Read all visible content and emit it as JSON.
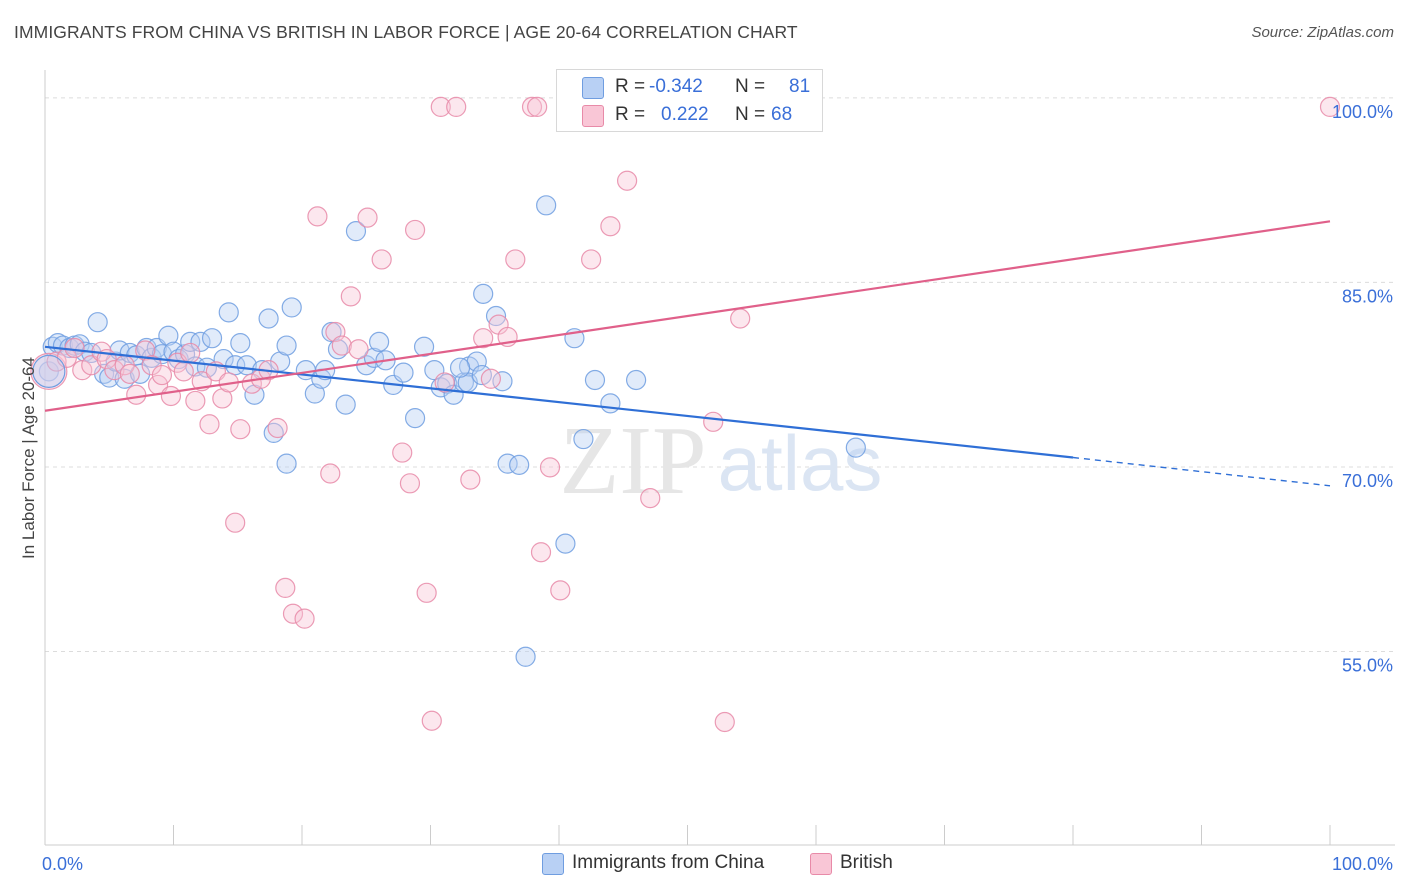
{
  "title": "IMMIGRANTS FROM CHINA VS BRITISH IN LABOR FORCE | AGE 20-64 CORRELATION CHART",
  "source": "Source: ZipAtlas.com",
  "watermark": {
    "zip": "ZIP",
    "atlas": "atlas"
  },
  "legend": {
    "rows": [
      {
        "r_label": "R =",
        "r_value": "-0.342",
        "n_label": "N =",
        "n_value": "81",
        "fill": "#b8d0f4",
        "stroke": "#6f9de0"
      },
      {
        "r_label": "R =",
        "r_value": "0.222",
        "n_label": "N =",
        "n_value": "68",
        "fill": "#f9c6d6",
        "stroke": "#e88aa8"
      }
    ]
  },
  "bottom_legend": [
    {
      "label": "Immigrants from China",
      "fill": "#b8d0f4",
      "stroke": "#6f9de0"
    },
    {
      "label": "British",
      "fill": "#f9c6d6",
      "stroke": "#e88aa8"
    }
  ],
  "chart_data": {
    "type": "scatter",
    "title": "IMMIGRANTS FROM CHINA VS BRITISH IN LABOR FORCE | AGE 20-64 CORRELATION CHART",
    "xlabel": "",
    "ylabel": "In Labor Force | Age 20-64",
    "xlim": [
      0,
      100
    ],
    "ylim": [
      40,
      103
    ],
    "x_tick_labels": [
      {
        "value": 0,
        "label": "0.0%"
      },
      {
        "value": 100,
        "label": "100.0%"
      }
    ],
    "y_tick_labels": [
      {
        "value": 100,
        "label": "100.0%"
      },
      {
        "value": 85,
        "label": "85.0%"
      },
      {
        "value": 70,
        "label": "70.0%"
      },
      {
        "value": 55,
        "label": "55.0%"
      }
    ],
    "grid": true,
    "legend_position": "top-center",
    "series": [
      {
        "name": "Immigrants from China",
        "color": "#6f9de0",
        "fill": "#b8d0f4",
        "line_color": "#2f6fd6",
        "trend": {
          "x_start": 0,
          "y_start": 80.5,
          "x_end": 80,
          "y_end": 71.5,
          "dashed_to_x": 100,
          "dashed_to_y": 69.2
        },
        "points": [
          [
            0.3,
            78.5
          ],
          [
            0.6,
            80.5
          ],
          [
            1.0,
            80.8
          ],
          [
            1.4,
            80.6
          ],
          [
            1.9,
            80.4
          ],
          [
            2.3,
            80.6
          ],
          [
            2.7,
            80.7
          ],
          [
            3.1,
            80.1
          ],
          [
            3.6,
            80.0
          ],
          [
            4.1,
            82.5
          ],
          [
            4.6,
            78.3
          ],
          [
            5.0,
            78.0
          ],
          [
            5.5,
            79.3
          ],
          [
            5.8,
            80.2
          ],
          [
            6.2,
            77.9
          ],
          [
            6.6,
            80.0
          ],
          [
            7.1,
            79.8
          ],
          [
            7.4,
            78.3
          ],
          [
            7.9,
            80.4
          ],
          [
            8.3,
            79.6
          ],
          [
            8.7,
            80.4
          ],
          [
            9.1,
            79.9
          ],
          [
            9.6,
            81.4
          ],
          [
            10.0,
            80.1
          ],
          [
            10.4,
            79.5
          ],
          [
            10.9,
            79.9
          ],
          [
            11.3,
            80.9
          ],
          [
            11.7,
            78.9
          ],
          [
            12.1,
            80.9
          ],
          [
            12.6,
            78.8
          ],
          [
            13.0,
            81.2
          ],
          [
            13.9,
            79.5
          ],
          [
            14.3,
            83.3
          ],
          [
            14.8,
            79.0
          ],
          [
            15.2,
            80.8
          ],
          [
            15.7,
            79.0
          ],
          [
            16.3,
            76.6
          ],
          [
            16.9,
            78.6
          ],
          [
            17.4,
            82.8
          ],
          [
            17.8,
            73.5
          ],
          [
            18.3,
            79.3
          ],
          [
            18.8,
            80.6
          ],
          [
            19.2,
            83.7
          ],
          [
            20.3,
            78.6
          ],
          [
            21.0,
            76.7
          ],
          [
            21.5,
            77.9
          ],
          [
            21.8,
            78.6
          ],
          [
            22.3,
            81.7
          ],
          [
            22.8,
            80.3
          ],
          [
            23.4,
            75.8
          ],
          [
            24.2,
            89.9
          ],
          [
            25.0,
            79.0
          ],
          [
            25.6,
            79.6
          ],
          [
            26.0,
            80.9
          ],
          [
            26.5,
            79.4
          ],
          [
            27.1,
            77.4
          ],
          [
            27.9,
            78.4
          ],
          [
            28.8,
            74.7
          ],
          [
            29.5,
            80.5
          ],
          [
            30.3,
            78.6
          ],
          [
            30.8,
            77.2
          ],
          [
            31.3,
            77.5
          ],
          [
            31.8,
            76.6
          ],
          [
            32.6,
            77.6
          ],
          [
            33.0,
            78.9
          ],
          [
            33.6,
            79.3
          ],
          [
            34.1,
            84.8
          ],
          [
            35.1,
            83.0
          ],
          [
            36.0,
            71.0
          ],
          [
            36.9,
            70.9
          ],
          [
            41.2,
            81.2
          ],
          [
            41.9,
            73.0
          ],
          [
            42.8,
            77.8
          ],
          [
            44.0,
            75.9
          ],
          [
            46.0,
            77.8
          ],
          [
            63.1,
            72.3
          ],
          [
            35.6,
            77.7
          ],
          [
            32.9,
            77.6
          ],
          [
            18.8,
            71.0
          ],
          [
            32.3,
            78.8
          ],
          [
            39.0,
            92.0
          ],
          [
            34.0,
            78.2
          ],
          [
            37.4,
            55.3
          ],
          [
            40.5,
            64.5
          ]
        ]
      },
      {
        "name": "British",
        "color": "#e88aa8",
        "fill": "#f9c6d6",
        "line_color": "#e0608a",
        "trend": {
          "x_start": 0,
          "y_start": 75.3,
          "x_end": 100,
          "y_end": 90.7
        },
        "points": [
          [
            0.3,
            78.5
          ],
          [
            0.9,
            79.3
          ],
          [
            1.7,
            79.6
          ],
          [
            2.3,
            80.4
          ],
          [
            2.9,
            78.6
          ],
          [
            3.6,
            79.0
          ],
          [
            4.4,
            80.1
          ],
          [
            4.8,
            79.5
          ],
          [
            5.4,
            78.6
          ],
          [
            6.2,
            79.0
          ],
          [
            6.6,
            78.3
          ],
          [
            7.1,
            76.6
          ],
          [
            7.8,
            80.2
          ],
          [
            8.3,
            79.0
          ],
          [
            8.8,
            77.4
          ],
          [
            9.1,
            78.2
          ],
          [
            9.8,
            76.5
          ],
          [
            10.3,
            79.2
          ],
          [
            10.8,
            78.5
          ],
          [
            11.3,
            80.0
          ],
          [
            11.7,
            76.1
          ],
          [
            12.2,
            77.7
          ],
          [
            12.8,
            74.2
          ],
          [
            13.3,
            78.5
          ],
          [
            13.8,
            76.3
          ],
          [
            14.3,
            77.6
          ],
          [
            14.8,
            66.2
          ],
          [
            15.2,
            73.8
          ],
          [
            16.1,
            77.5
          ],
          [
            16.8,
            77.9
          ],
          [
            17.4,
            78.6
          ],
          [
            18.1,
            73.9
          ],
          [
            18.7,
            60.9
          ],
          [
            19.3,
            58.8
          ],
          [
            20.2,
            58.4
          ],
          [
            21.2,
            91.1
          ],
          [
            22.2,
            70.2
          ],
          [
            22.6,
            81.7
          ],
          [
            23.1,
            80.6
          ],
          [
            23.8,
            84.6
          ],
          [
            24.4,
            80.3
          ],
          [
            25.1,
            91.0
          ],
          [
            26.2,
            87.6
          ],
          [
            27.8,
            71.9
          ],
          [
            28.4,
            69.4
          ],
          [
            28.8,
            90.0
          ],
          [
            29.7,
            60.5
          ],
          [
            30.1,
            50.1
          ],
          [
            30.8,
            100.0
          ],
          [
            31.1,
            77.6
          ],
          [
            32.0,
            100.0
          ],
          [
            33.1,
            69.7
          ],
          [
            34.1,
            81.2
          ],
          [
            34.7,
            77.9
          ],
          [
            35.3,
            82.3
          ],
          [
            36.0,
            81.3
          ],
          [
            36.6,
            87.6
          ],
          [
            37.9,
            100.0
          ],
          [
            38.3,
            100.0
          ],
          [
            38.6,
            63.8
          ],
          [
            39.3,
            70.7
          ],
          [
            40.1,
            60.7
          ],
          [
            42.5,
            87.6
          ],
          [
            44.0,
            90.3
          ],
          [
            45.3,
            94.0
          ],
          [
            47.6,
            100.0
          ],
          [
            47.1,
            68.2
          ],
          [
            52.0,
            74.4
          ],
          [
            52.9,
            50.0
          ],
          [
            54.1,
            82.8
          ],
          [
            100.0,
            100.0
          ]
        ]
      }
    ]
  }
}
